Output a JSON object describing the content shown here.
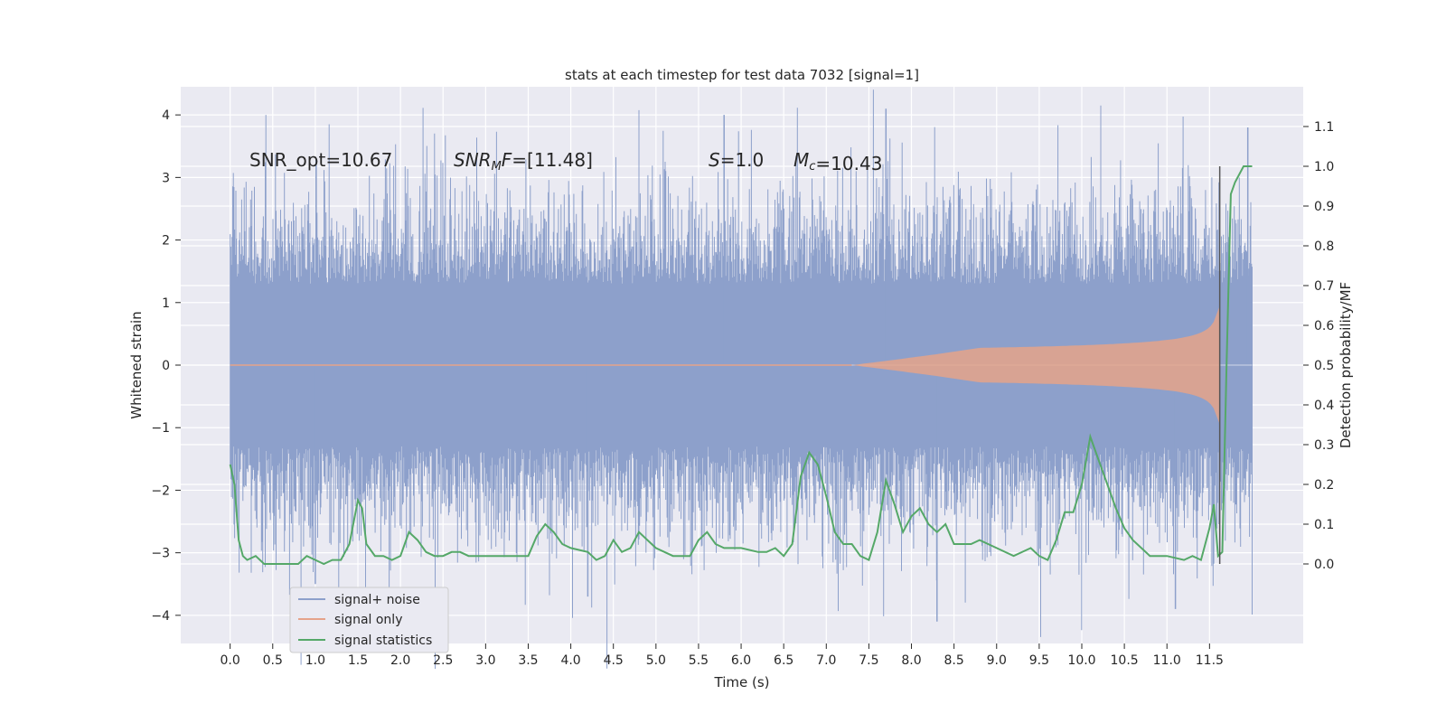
{
  "chart_data": {
    "type": "line",
    "title": "stats at each timestep for test data 7032 [signal=1]",
    "xlabel": "Time (s)",
    "ylabel": "Whitened strain",
    "y2label": "Detection probability/MF",
    "xlim": [
      -0.58,
      12.6
    ],
    "ylim": [
      -4.45,
      4.45
    ],
    "y2lim": [
      -0.2,
      1.2
    ],
    "x_ticks": [
      "0.0",
      "0.5",
      "1.0",
      "1.5",
      "2.0",
      "2.5",
      "3.0",
      "3.5",
      "4.0",
      "4.5",
      "5.0",
      "5.5",
      "6.0",
      "6.5",
      "7.0",
      "7.5",
      "8.0",
      "8.5",
      "9.0",
      "9.5",
      "10.0",
      "10.5",
      "11.0",
      "11.5"
    ],
    "y_ticks": [
      "4",
      "3",
      "2",
      "1",
      "0",
      "−1",
      "−2",
      "−3",
      "−4"
    ],
    "y2_ticks": [
      "1.1",
      "1.0",
      "0.9",
      "0.8",
      "0.7",
      "0.6",
      "0.5",
      "0.4",
      "0.3",
      "0.2",
      "0.1",
      "0.0"
    ],
    "grid": true,
    "legend_position": "lower-left",
    "annotations": {
      "snr_opt": "SNR_opt=10.67",
      "snr_mf": "SNR_MF=[11.48]",
      "s": "S=1.0",
      "mc": "M_c=10.43"
    },
    "vline_x": 11.62,
    "series": [
      {
        "name": "signal+ noise",
        "color": "#8da0cb",
        "axis": "left",
        "style": "dense-noise",
        "x_range": [
          0.0,
          12.0
        ],
        "envelope_typical": [
          -1.3,
          1.3
        ],
        "notable_peaks": [
          [
            1.0,
            -3.5
          ],
          [
            4.2,
            -3.7
          ],
          [
            5.8,
            4.0
          ],
          [
            7.7,
            4.1
          ],
          [
            8.3,
            -4.1
          ],
          [
            11.1,
            -3.9
          ],
          [
            11.95,
            3.8
          ]
        ]
      },
      {
        "name": "signal only",
        "color": "#e5a38a",
        "axis": "left",
        "style": "chirp",
        "onset_x": 7.3,
        "end_x": 11.62,
        "peak_amplitude": 0.95
      },
      {
        "name": "signal statistics",
        "color": "#55a868",
        "axis": "right",
        "x": [
          0.0,
          0.05,
          0.1,
          0.15,
          0.2,
          0.3,
          0.4,
          0.5,
          0.6,
          0.7,
          0.8,
          0.9,
          1.0,
          1.1,
          1.2,
          1.3,
          1.4,
          1.5,
          1.55,
          1.6,
          1.7,
          1.8,
          1.9,
          2.0,
          2.1,
          2.2,
          2.3,
          2.4,
          2.5,
          2.6,
          2.7,
          2.8,
          2.9,
          3.0,
          3.2,
          3.4,
          3.5,
          3.6,
          3.7,
          3.8,
          3.9,
          4.0,
          4.2,
          4.3,
          4.4,
          4.5,
          4.6,
          4.7,
          4.8,
          4.9,
          5.0,
          5.2,
          5.4,
          5.5,
          5.6,
          5.7,
          5.8,
          5.9,
          6.0,
          6.2,
          6.3,
          6.4,
          6.5,
          6.6,
          6.7,
          6.8,
          6.9,
          7.0,
          7.1,
          7.2,
          7.3,
          7.4,
          7.5,
          7.6,
          7.7,
          7.8,
          7.9,
          8.0,
          8.1,
          8.2,
          8.3,
          8.4,
          8.5,
          8.6,
          8.7,
          8.8,
          9.0,
          9.2,
          9.4,
          9.5,
          9.6,
          9.7,
          9.8,
          9.9,
          10.0,
          10.1,
          10.2,
          10.3,
          10.4,
          10.5,
          10.6,
          10.8,
          11.0,
          11.2,
          11.3,
          11.4,
          11.5,
          11.55,
          11.6,
          11.65,
          11.7,
          11.75,
          11.8,
          11.9,
          12.0
        ],
        "values": [
          0.25,
          0.2,
          0.06,
          0.02,
          0.01,
          0.02,
          0.0,
          0.0,
          0.0,
          0.0,
          0.0,
          0.02,
          0.01,
          0.0,
          0.01,
          0.01,
          0.05,
          0.16,
          0.14,
          0.05,
          0.02,
          0.02,
          0.01,
          0.02,
          0.08,
          0.06,
          0.03,
          0.02,
          0.02,
          0.03,
          0.03,
          0.02,
          0.02,
          0.02,
          0.02,
          0.02,
          0.02,
          0.07,
          0.1,
          0.08,
          0.05,
          0.04,
          0.03,
          0.01,
          0.02,
          0.06,
          0.03,
          0.04,
          0.08,
          0.06,
          0.04,
          0.02,
          0.02,
          0.06,
          0.08,
          0.05,
          0.04,
          0.04,
          0.04,
          0.03,
          0.03,
          0.04,
          0.02,
          0.05,
          0.22,
          0.28,
          0.25,
          0.17,
          0.08,
          0.05,
          0.05,
          0.02,
          0.01,
          0.08,
          0.21,
          0.15,
          0.08,
          0.12,
          0.14,
          0.1,
          0.08,
          0.1,
          0.05,
          0.05,
          0.05,
          0.06,
          0.04,
          0.02,
          0.04,
          0.02,
          0.01,
          0.06,
          0.13,
          0.13,
          0.2,
          0.32,
          0.26,
          0.2,
          0.14,
          0.09,
          0.06,
          0.02,
          0.02,
          0.01,
          0.02,
          0.01,
          0.09,
          0.15,
          0.02,
          0.03,
          0.5,
          0.93,
          0.96,
          1.0,
          1.0
        ]
      }
    ]
  }
}
